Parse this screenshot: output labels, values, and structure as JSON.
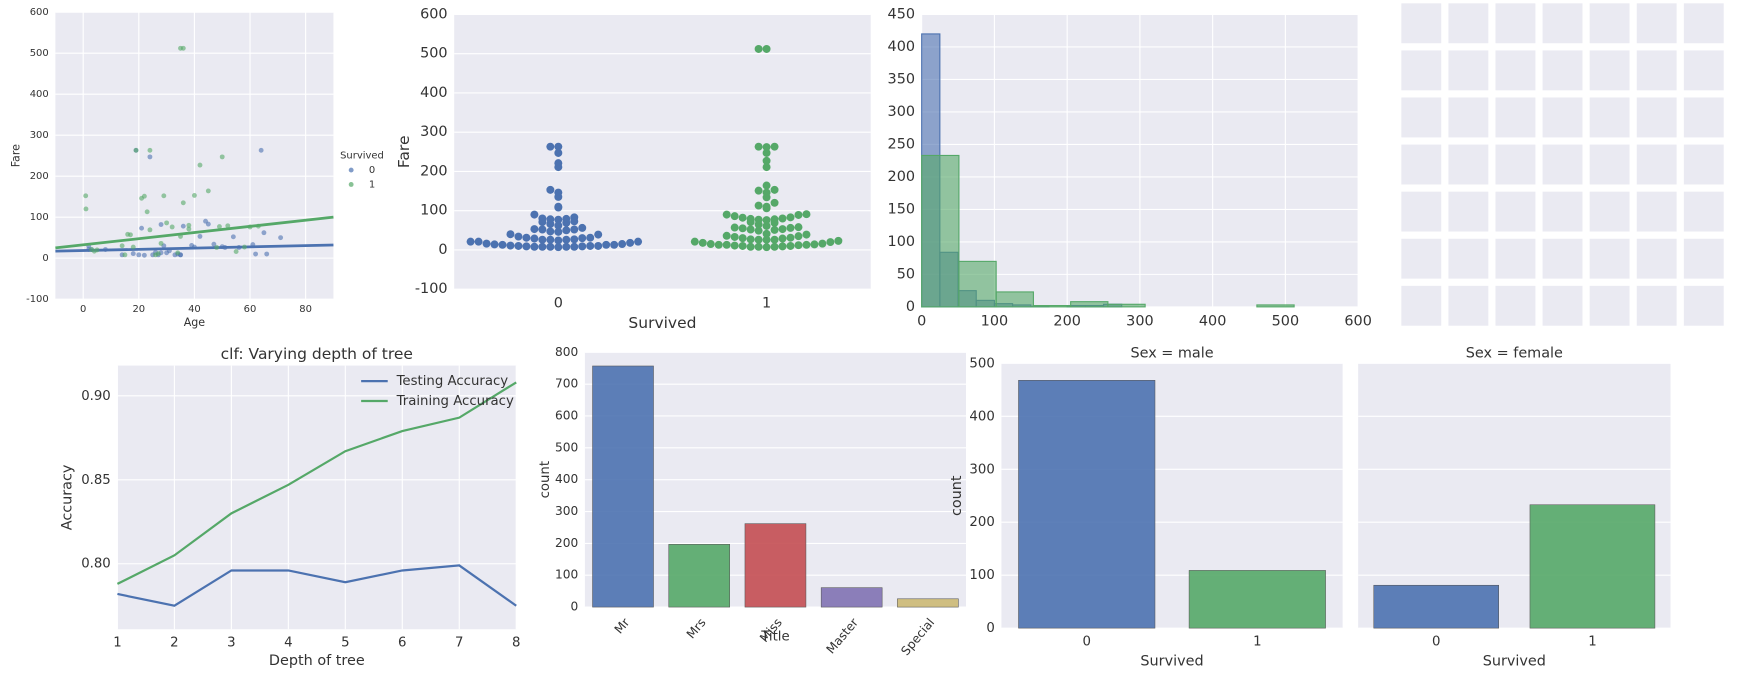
{
  "chart_data": [
    {
      "type": "scatter",
      "xlabel": "Age",
      "ylabel": "Fare",
      "xlim": [
        -10,
        90
      ],
      "ylim": [
        -100,
        600
      ],
      "xticks": [
        0,
        20,
        40,
        60,
        80
      ],
      "yticks": [
        -100,
        0,
        100,
        200,
        300,
        400,
        500,
        600
      ],
      "grid": true,
      "legend_title": "Survived",
      "legend": "right",
      "series": [
        {
          "name": "0",
          "color": "#4c72b0",
          "x": [
            22,
            35,
            54,
            2,
            20,
            39,
            14,
            2,
            31,
            35,
            34,
            28,
            8,
            19,
            40,
            66,
            28,
            42,
            21,
            18,
            27,
            3,
            24,
            29,
            30,
            45,
            51,
            61,
            56,
            50,
            65,
            36,
            47,
            25,
            44,
            71,
            33,
            26,
            64,
            62
          ],
          "values": [
            7,
            8,
            52,
            21,
            8,
            31,
            8,
            29,
            18,
            8,
            10,
            13,
            21,
            263,
            27,
            10,
            82,
            53,
            73,
            11,
            8,
            21,
            247,
            30,
            13,
            83,
            26,
            33,
            26,
            28,
            62,
            78,
            34,
            8,
            90,
            50,
            8,
            14,
            263,
            10
          ],
          "fit": {
            "x": [
              -10,
              90
            ],
            "values": [
              17,
              32
            ]
          }
        },
        {
          "name": "1",
          "color": "#55a868",
          "x": [
            38,
            26,
            35,
            27,
            14,
            4,
            58,
            55,
            34,
            15,
            28,
            38,
            3,
            19,
            49,
            29,
            21,
            5,
            17,
            32,
            24,
            35,
            36,
            0.9,
            23,
            45,
            1,
            16,
            48,
            22,
            30,
            42,
            24,
            18,
            52,
            63,
            40,
            60,
            36,
            50
          ],
          "values": [
            71,
            8,
            53,
            11,
            30,
            17,
            27,
            16,
            13,
            8,
            36,
            80,
            21,
            263,
            77,
            152,
            146,
            20,
            57,
            76,
            263,
            512,
            512,
            152,
            113,
            164,
            120,
            58,
            26,
            151,
            86,
            227,
            69,
            27,
            79,
            78,
            153,
            76,
            135,
            247
          ],
          "fit": {
            "x": [
              -10,
              90
            ],
            "values": [
              25,
              100
            ]
          }
        }
      ]
    },
    {
      "type": "swarm",
      "xlabel": "Survived",
      "ylabel": "Fare",
      "categories": [
        "0",
        "1"
      ],
      "ylim": [
        -100,
        600
      ],
      "yticks": [
        -100,
        0,
        100,
        200,
        300,
        400,
        500,
        600
      ],
      "grid": true,
      "groups": [
        {
          "color": "#4c72b0",
          "values": [
            7,
            8,
            8,
            8,
            8,
            8,
            9,
            9,
            10,
            10,
            10,
            11,
            13,
            13,
            13,
            14,
            15,
            16,
            18,
            21,
            21,
            21,
            24,
            26,
            26,
            26,
            27,
            29,
            30,
            31,
            31,
            34,
            39,
            40,
            46,
            47,
            50,
            52,
            52,
            53,
            56,
            62,
            66,
            69,
            71,
            73,
            77,
            78,
            79,
            80,
            83,
            90,
            108,
            110,
            135,
            146,
            153,
            211,
            221,
            247,
            263,
            263
          ]
        },
        {
          "color": "#55a868",
          "values": [
            7,
            8,
            8,
            8,
            9,
            10,
            10,
            11,
            12,
            13,
            13,
            13,
            14,
            15,
            16,
            18,
            20,
            21,
            23,
            26,
            26,
            26,
            27,
            29,
            30,
            31,
            33,
            35,
            36,
            39,
            41,
            49,
            51,
            52,
            53,
            55,
            56,
            57,
            58,
            61,
            65,
            69,
            71,
            76,
            77,
            78,
            79,
            80,
            82,
            83,
            86,
            89,
            90,
            91,
            106,
            110,
            113,
            120,
            134,
            146,
            151,
            153,
            164,
            211,
            227,
            247,
            262,
            263,
            263,
            512,
            512
          ]
        }
      ]
    },
    {
      "type": "histogram",
      "xlim": [
        0,
        600
      ],
      "ylim": [
        0,
        450
      ],
      "xticks": [
        0,
        100,
        200,
        300,
        400,
        500,
        600
      ],
      "yticks": [
        0,
        50,
        100,
        150,
        200,
        250,
        300,
        350,
        400,
        450
      ],
      "grid": true,
      "series": [
        {
          "color": "#4c72b0",
          "bins": [
            0,
            25,
            50,
            75,
            100,
            125,
            150,
            175,
            200,
            225,
            250,
            275
          ],
          "counts": [
            420,
            84,
            25,
            10,
            5,
            3,
            1,
            0,
            2,
            2,
            4
          ]
        },
        {
          "color": "#55a868",
          "bins": [
            0,
            51.2,
            102.4,
            153.6,
            204.8,
            256,
            307.2,
            358.4,
            409.6,
            460.8,
            512
          ],
          "counts": [
            233,
            70,
            23,
            2,
            8,
            4,
            0,
            0,
            0,
            3
          ]
        }
      ]
    },
    {
      "type": "line",
      "title": "clf: Varying depth of tree",
      "xlabel": "Depth of tree",
      "ylabel": "Accuracy",
      "x": [
        1,
        2,
        3,
        4,
        5,
        6,
        7,
        8
      ],
      "xlim": [
        1,
        8
      ],
      "xticks": [
        1,
        2,
        3,
        4,
        5,
        6,
        7,
        8
      ],
      "ylim": [
        0.761,
        0.918
      ],
      "yticks": [
        {
          "value": 0.8,
          "label": "0.80"
        },
        0.85,
        {
          "value": 0.9,
          "label": "0.90"
        }
      ],
      "grid": true,
      "legend": "upper right",
      "series": [
        {
          "name": "Testing Accuracy",
          "color": "#4c72b0",
          "values": [
            0.782,
            0.775,
            0.796,
            0.796,
            0.789,
            0.796,
            0.799,
            0.775
          ]
        },
        {
          "name": "Training Accuracy",
          "color": "#55a868",
          "values": [
            0.788,
            0.805,
            0.83,
            0.847,
            0.867,
            0.879,
            0.887,
            0.908
          ]
        }
      ]
    },
    {
      "type": "bar",
      "xlabel": "Title",
      "ylabel": "count",
      "categories": [
        "Mr",
        "Mrs",
        "Miss",
        "Master",
        "Special"
      ],
      "values": [
        757,
        197,
        262,
        61,
        26
      ],
      "colors": [
        "#4c72b0",
        "#55a868",
        "#c44e52",
        "#8172b2",
        "#ccb974"
      ],
      "ylim": [
        0,
        800
      ],
      "yticks": [
        0,
        100,
        200,
        300,
        400,
        500,
        600,
        700,
        800
      ],
      "grid": true
    },
    {
      "type": "facetbar",
      "xlabel": "Survived",
      "ylabel": "count",
      "categories": [
        "0",
        "1"
      ],
      "colors": [
        "#4c72b0",
        "#55a868"
      ],
      "ylim": [
        0,
        500
      ],
      "yticks": [
        0,
        100,
        200,
        300,
        400,
        500
      ],
      "grid": true,
      "facets": [
        {
          "title": "Sex = male",
          "values": [
            468,
            109
          ]
        },
        {
          "title": "Sex = female",
          "values": [
            81,
            233
          ]
        }
      ]
    }
  ]
}
